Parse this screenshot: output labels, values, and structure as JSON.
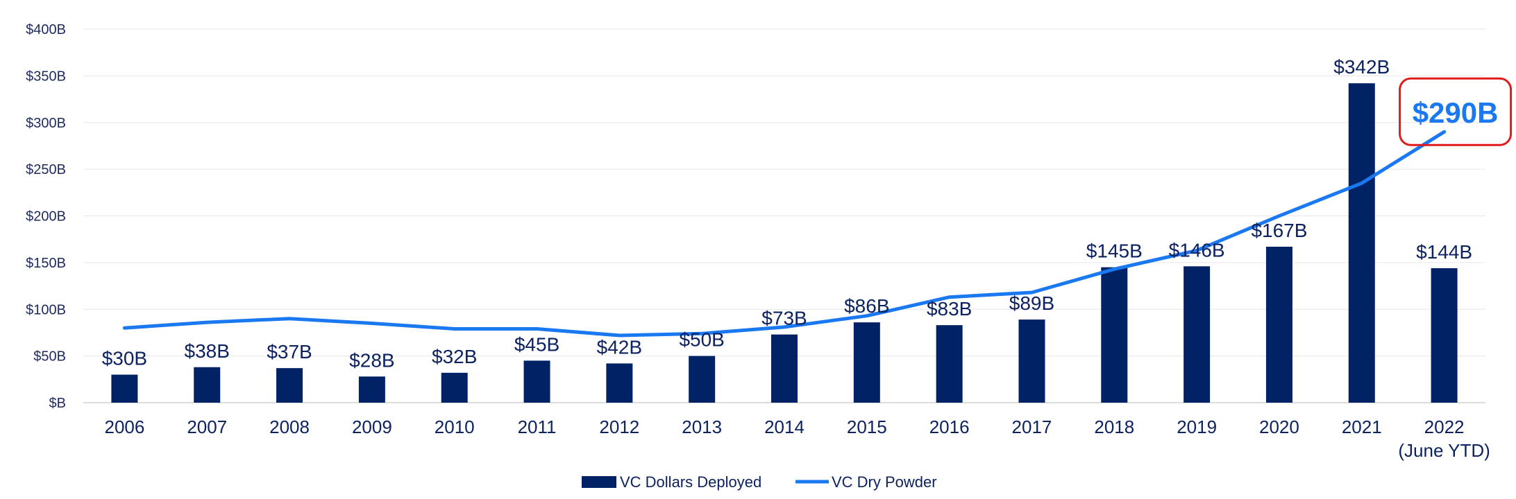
{
  "colors": {
    "bar": "#012366",
    "line": "#1a78f0",
    "callout_border": "#e11b1b",
    "gridline": "#e6e6e6",
    "axis_text": "#0d2260"
  },
  "chart_data": {
    "type": "bar",
    "title": "",
    "xlabel": "",
    "ylabel": "",
    "ylim": [
      0,
      400
    ],
    "y_ticks": [
      0,
      50,
      100,
      150,
      200,
      250,
      300,
      350,
      400
    ],
    "y_tick_labels": [
      "$B",
      "$50B",
      "$100B",
      "$150B",
      "$200B",
      "$250B",
      "$300B",
      "$350B",
      "$400B"
    ],
    "grid": true,
    "categories": [
      "2006",
      "2007",
      "2008",
      "2009",
      "2010",
      "2011",
      "2012",
      "2013",
      "2014",
      "2015",
      "2016",
      "2017",
      "2018",
      "2019",
      "2020",
      "2021",
      "2022"
    ],
    "category_sublabels": [
      "",
      "",
      "",
      "",
      "",
      "",
      "",
      "",
      "",
      "",
      "",
      "",
      "",
      "",
      "",
      "",
      "(June YTD)"
    ],
    "series": [
      {
        "name": "VC Dollars Deployed",
        "type": "bar",
        "values": [
          30,
          38,
          37,
          28,
          32,
          45,
          42,
          50,
          73,
          86,
          83,
          89,
          145,
          146,
          167,
          342,
          144
        ],
        "labels": [
          "$30B",
          "$38B",
          "$37B",
          "$28B",
          "$32B",
          "$45B",
          "$42B",
          "$50B",
          "$73B",
          "$86B",
          "$83B",
          "$89B",
          "$145B",
          "$146B",
          "$167B",
          "$342B",
          "$144B"
        ]
      },
      {
        "name": "VC Dry Powder",
        "type": "line",
        "values": [
          80,
          86,
          90,
          85,
          79,
          79,
          72,
          74,
          81,
          93,
          113,
          118,
          143,
          163,
          200,
          235,
          290
        ]
      }
    ],
    "callout": {
      "label": "$290B",
      "series": "VC Dry Powder",
      "category": "2022"
    },
    "legend": {
      "position": "bottom-center",
      "entries": [
        "VC Dollars Deployed",
        "VC Dry Powder"
      ]
    }
  }
}
